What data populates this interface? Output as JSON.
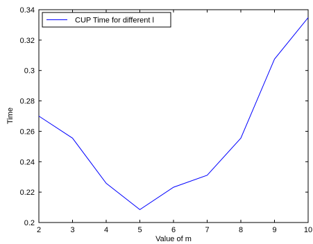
{
  "chart_data": {
    "type": "line",
    "title": "",
    "xlabel": "Value of m",
    "ylabel": "Time",
    "xlim": [
      2,
      10
    ],
    "ylim": [
      0.2,
      0.34
    ],
    "xticks": [
      2,
      3,
      4,
      5,
      6,
      7,
      8,
      9,
      10
    ],
    "xtick_labels": [
      "2",
      "3",
      "4",
      "5",
      "6",
      "7",
      "8",
      "9",
      "10"
    ],
    "yticks": [
      0.2,
      0.22,
      0.24,
      0.26,
      0.28,
      0.3,
      0.32,
      0.34
    ],
    "ytick_labels": [
      "0.2",
      "0.22",
      "0.24",
      "0.26",
      "0.28",
      "0.3",
      "0.32",
      "0.34"
    ],
    "grid": false,
    "legend_position": "top-left",
    "series": [
      {
        "name": "CUP Time for different l",
        "color": "#0000ff",
        "x": [
          2,
          3,
          4,
          5,
          6,
          7,
          8,
          9,
          10
        ],
        "y": [
          0.27,
          0.2555,
          0.2258,
          0.2085,
          0.2232,
          0.2311,
          0.2555,
          0.3075,
          0.3348
        ]
      }
    ]
  }
}
